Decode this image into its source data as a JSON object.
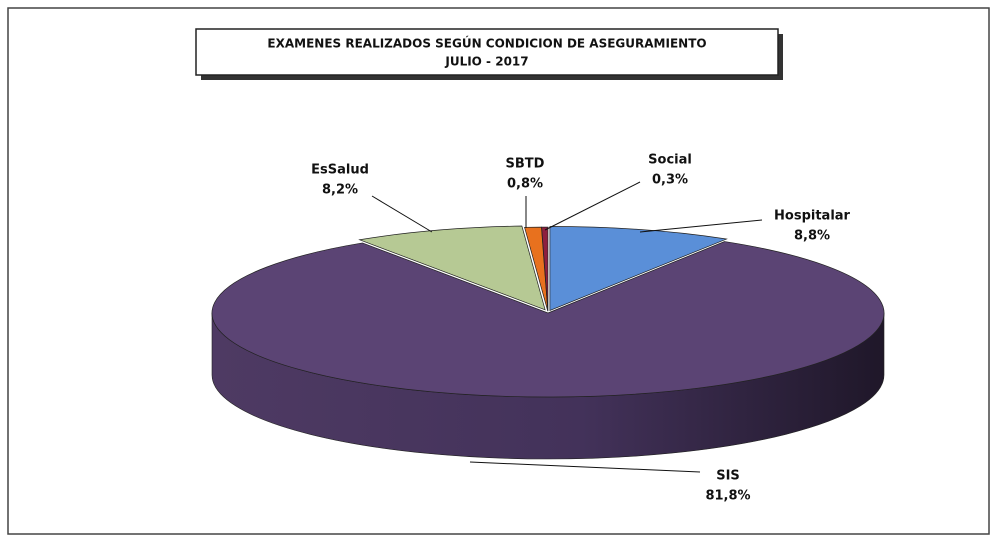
{
  "chart_data": {
    "type": "pie",
    "title": "EXAMENES REALIZADOS SEGÚN CONDICION DE ASEGURAMIENTO",
    "subtitle": "JULIO  -  2017",
    "categories": [
      "Hospitalar",
      "SIS",
      "EsSalud",
      "SBTD",
      "Social"
    ],
    "values": [
      8.8,
      81.8,
      8.2,
      0.8,
      0.3
    ],
    "value_labels": [
      "8,8%",
      "81,8%",
      "8,2%",
      "0,8%",
      "0,3%"
    ],
    "colors": [
      "#5a8fd8",
      "#5b4474",
      "#b6c994",
      "#e8711e",
      "#8e1f3e"
    ]
  }
}
